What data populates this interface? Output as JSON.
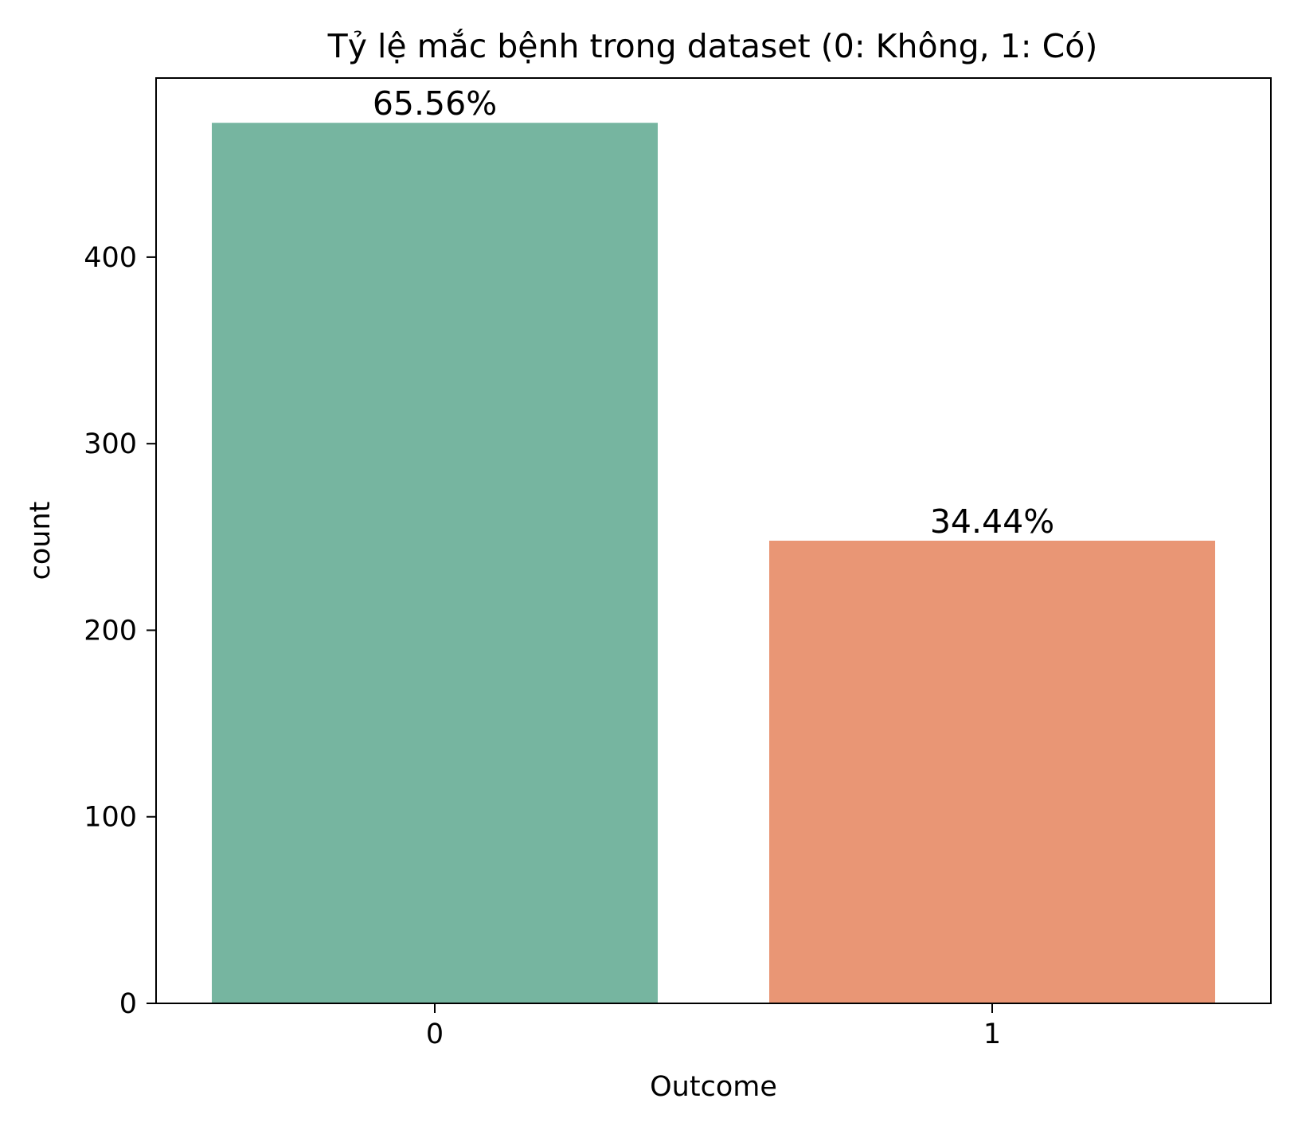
{
  "chart_data": {
    "type": "bar",
    "title": "Tỷ lệ mắc bệnh trong dataset (0: Không, 1: Có)",
    "xlabel": "Outcome",
    "ylabel": "count",
    "categories": [
      "0",
      "1"
    ],
    "values": [
      472,
      248
    ],
    "data_labels": [
      "65.56%",
      "34.44%"
    ],
    "colors": [
      "#76b5a0",
      "#e99675"
    ],
    "ylim": [
      0,
      496
    ],
    "yticks": [
      0,
      100,
      200,
      300,
      400
    ],
    "grid": false,
    "legend": "none"
  }
}
